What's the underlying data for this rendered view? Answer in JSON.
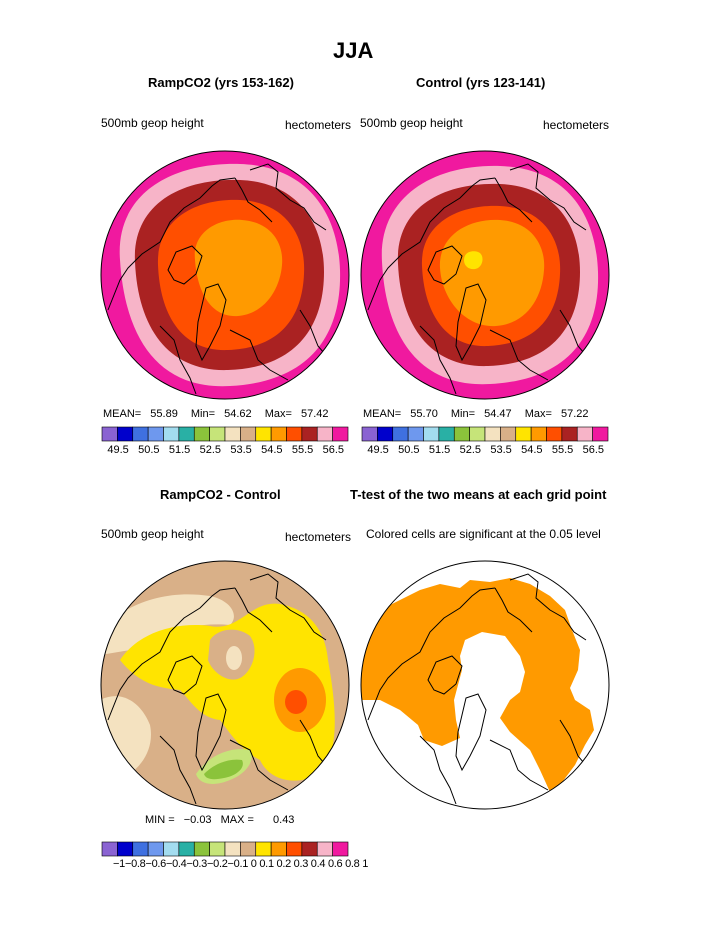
{
  "figure": {
    "title": "JJA",
    "colors": {
      "pink_dark": "#f0199f",
      "pink_light": "#f7b4c8",
      "maroon": "#aa2222",
      "orange_red": "#ff4f00",
      "orange": "#ff9a00",
      "yellow": "#ffe400",
      "tan": "#d9b088",
      "cream": "#f4e2c0",
      "green": "#8bc33b",
      "light_green": "#c6e479",
      "teal": "#29b0a5",
      "light_blue": "#a3dcef",
      "blue": "#3f70e0",
      "dark_blue": "#0000cc",
      "purple": "#8a63d2"
    }
  },
  "panels": [
    {
      "id": "rampco2",
      "title": "RampCO2 (yrs 153-162)",
      "left_label": "500mb geop height",
      "right_label": "hectometers",
      "stats": {
        "mean_label": "MEAN=",
        "mean": "55.89",
        "min_label": "Min=",
        "min": "54.62",
        "max_label": "Max=",
        "max": "57.42"
      }
    },
    {
      "id": "control",
      "title": "Control (yrs 123-141)",
      "left_label": "500mb geop height",
      "right_label": "hectometers",
      "stats": {
        "mean_label": "MEAN=",
        "mean": "55.70",
        "min_label": "Min=",
        "min": "54.47",
        "max_label": "Max=",
        "max": "57.22"
      }
    },
    {
      "id": "difference",
      "title": "RampCO2 - Control",
      "left_label": "500mb geop height",
      "right_label": "hectometers",
      "stats": {
        "min_label": "MIN =",
        "min": "−0.03",
        "max_label": "MAX =",
        "max": "0.43"
      }
    },
    {
      "id": "ttest",
      "title": "T-test of the two means at each grid point",
      "subtitle": "Colored cells are significant at the 0.05 level"
    }
  ],
  "chart_data": [
    {
      "type": "heatmap",
      "name": "RampCO2 (yrs 153-162)",
      "units": "hectometers",
      "colorbar_ticks": [
        "49.5",
        "50.5",
        "51.5",
        "52.5",
        "53.5",
        "54.5",
        "55.5",
        "56.5"
      ],
      "contour_levels": [
        49.5,
        50,
        50.5,
        51,
        51.5,
        52,
        52.5,
        53,
        53.5,
        54,
        54.5,
        55,
        55.5,
        56,
        56.5
      ],
      "mean": 55.89,
      "min": 54.62,
      "max": 57.42
    },
    {
      "type": "heatmap",
      "name": "Control (yrs 123-141)",
      "units": "hectometers",
      "colorbar_ticks": [
        "49.5",
        "50.5",
        "51.5",
        "52.5",
        "53.5",
        "54.5",
        "55.5",
        "56.5"
      ],
      "contour_levels": [
        49.5,
        50,
        50.5,
        51,
        51.5,
        52,
        52.5,
        53,
        53.5,
        54,
        54.5,
        55,
        55.5,
        56,
        56.5
      ],
      "mean": 55.7,
      "min": 54.47,
      "max": 57.22
    },
    {
      "type": "heatmap",
      "name": "RampCO2 - Control",
      "units": "hectometers",
      "colorbar_ticks": [
        "−1",
        "−0.8",
        "−0.6",
        "−0.4",
        "−0.3",
        "−0.2",
        "−0.1",
        "0",
        "0.1",
        "0.2",
        "0.3",
        "0.4",
        "0.6",
        "0.8",
        "1"
      ],
      "colorbar_ticks_text": "−1−0.8−0.6−0.4−0.3−0.2−0.1 0  0.1 0.2 0.3 0.4 0.6 0.8  1",
      "min": -0.03,
      "max": 0.43
    },
    {
      "type": "heatmap",
      "name": "T-test of the two means at each grid point",
      "significance_level": 0.05
    }
  ]
}
